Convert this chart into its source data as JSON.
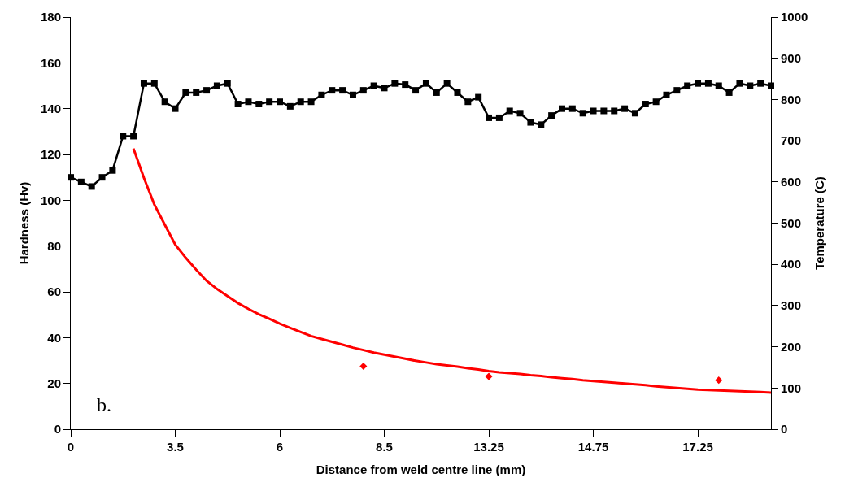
{
  "chart_data": {
    "type": "line",
    "xlabel": "Distance from weld centre line (mm)",
    "ylabel": "Hardness (Hv)",
    "y2label": "Temperature (C)",
    "categories": [
      "0",
      null,
      null,
      null,
      null,
      null,
      null,
      null,
      null,
      null,
      "3.5",
      null,
      null,
      null,
      null,
      null,
      null,
      null,
      null,
      null,
      "6",
      null,
      null,
      null,
      null,
      null,
      null,
      null,
      null,
      null,
      "8.5",
      null,
      null,
      null,
      null,
      null,
      null,
      null,
      null,
      null,
      "13.25",
      null,
      null,
      null,
      null,
      null,
      null,
      null,
      null,
      null,
      "14.75",
      null,
      null,
      null,
      null,
      null,
      null,
      null,
      null,
      null,
      "17.25",
      null,
      null,
      null,
      null,
      null,
      null,
      null
    ],
    "series": [
      {
        "color": "#000000",
        "marker": "square",
        "values": [
          110,
          108,
          106,
          110,
          113,
          128,
          128,
          151,
          151,
          143,
          140,
          147,
          147,
          148,
          150,
          151,
          142,
          143,
          142,
          143,
          143,
          141,
          143,
          143,
          146,
          148,
          148,
          146,
          148,
          150,
          149,
          151,
          150.5,
          148,
          151,
          147,
          151,
          147,
          143,
          145,
          136,
          136,
          139,
          138,
          134,
          133,
          137,
          140,
          140,
          138,
          139,
          139,
          139,
          140,
          138,
          142,
          143,
          146,
          148,
          150,
          151,
          151,
          150,
          147,
          151,
          150,
          151,
          150
        ]
      },
      {
        "type": "line",
        "color": "#ff0000",
        "marker": "none",
        "axis": "y2",
        "values": [
          null,
          null,
          null,
          null,
          null,
          null,
          681,
          610,
          545,
          496,
          448,
          416,
          387,
          360,
          340,
          323,
          306,
          292,
          279,
          268,
          256,
          246,
          236,
          226,
          219,
          212,
          205,
          198,
          192,
          186,
          181,
          176,
          171,
          166,
          162,
          158,
          155,
          152,
          148,
          145,
          141,
          138,
          136,
          134,
          131,
          129,
          126,
          124,
          122,
          119,
          117,
          115,
          113,
          111,
          109,
          107,
          104,
          102,
          100,
          98,
          96,
          95,
          94,
          93,
          92,
          91,
          90,
          89
        ]
      },
      {
        "type": "scatter",
        "color": "#ff0000",
        "marker": "diamond",
        "axis": "y2",
        "values": [
          null,
          null,
          null,
          null,
          null,
          null,
          null,
          null,
          null,
          null,
          null,
          null,
          null,
          null,
          null,
          null,
          null,
          null,
          null,
          null,
          null,
          null,
          null,
          null,
          null,
          null,
          null,
          null,
          153,
          null,
          null,
          null,
          null,
          null,
          null,
          null,
          null,
          null,
          null,
          null,
          128,
          null,
          null,
          null,
          null,
          null,
          null,
          null,
          null,
          null,
          null,
          null,
          null,
          null,
          null,
          null,
          null,
          null,
          null,
          null,
          null,
          null,
          119,
          null,
          null,
          null,
          null,
          null
        ]
      }
    ],
    "ylim": [
      0,
      180
    ],
    "yticks": [
      0,
      20,
      40,
      60,
      80,
      100,
      120,
      140,
      160,
      180
    ],
    "y2lim": [
      0,
      1000
    ],
    "y2ticks": [
      0,
      100,
      200,
      300,
      400,
      500,
      600,
      700,
      800,
      900,
      1000
    ],
    "annotations": [
      "b."
    ]
  }
}
